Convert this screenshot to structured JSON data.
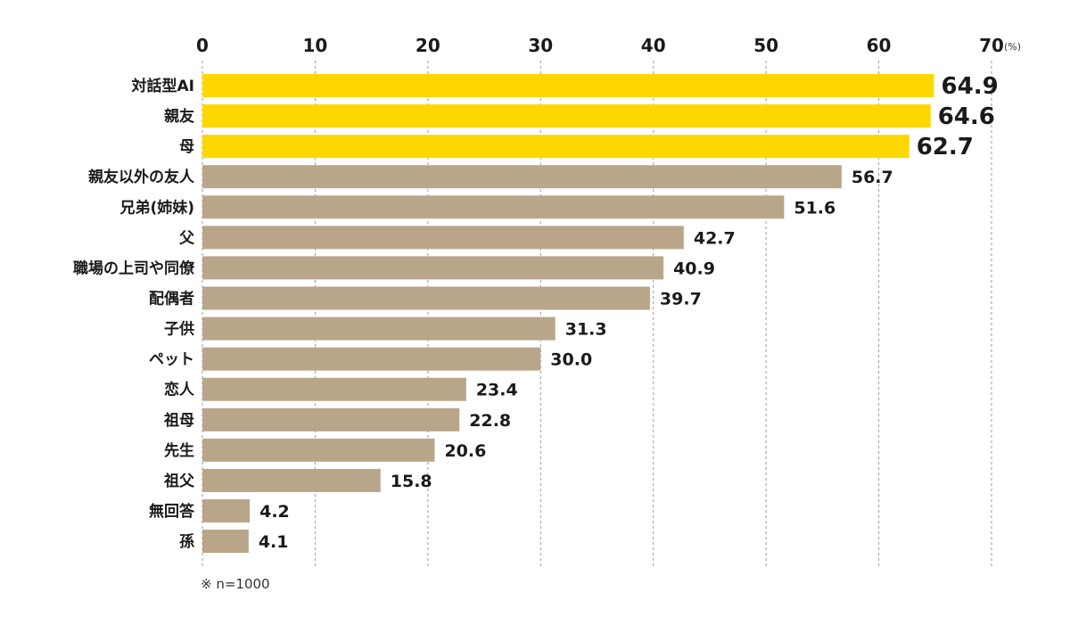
{
  "chart_data": {
    "type": "bar",
    "orientation": "horizontal",
    "title": "",
    "xlabel": "",
    "ylabel": "",
    "unit": "(%)",
    "xlim": [
      0,
      70
    ],
    "xticks": [
      0,
      10,
      20,
      30,
      40,
      50,
      60,
      70
    ],
    "grid": "vertical dashed",
    "categories": [
      "対話型AI",
      "親友",
      "母",
      "親友以外の友人",
      "兄弟(姉妹)",
      "父",
      "職場の上司や同僚",
      "配偶者",
      "子供",
      "ペット",
      "恋人",
      "祖母",
      "先生",
      "祖父",
      "無回答",
      "孫"
    ],
    "values": [
      64.9,
      64.6,
      62.7,
      56.7,
      51.6,
      42.7,
      40.9,
      39.7,
      31.3,
      30.0,
      23.4,
      22.8,
      20.6,
      15.8,
      4.2,
      4.1
    ],
    "value_labels": [
      "64.9",
      "64.6",
      "62.7",
      "56.7",
      "51.6",
      "42.7",
      "40.9",
      "39.7",
      "31.3",
      "30.0",
      "23.4",
      "22.8",
      "20.6",
      "15.8",
      "4.2",
      "4.1"
    ],
    "highlighted": [
      true,
      true,
      true,
      false,
      false,
      false,
      false,
      false,
      false,
      false,
      false,
      false,
      false,
      false,
      false,
      false
    ],
    "colors": {
      "highlight_bar": "#FFD700",
      "normal_bar": "#B9A68A",
      "highlight_label": "#1E9E6E",
      "normal_label": "#1a1a1a",
      "grid": "#9a9a9a"
    },
    "note": "※ n=1000"
  }
}
